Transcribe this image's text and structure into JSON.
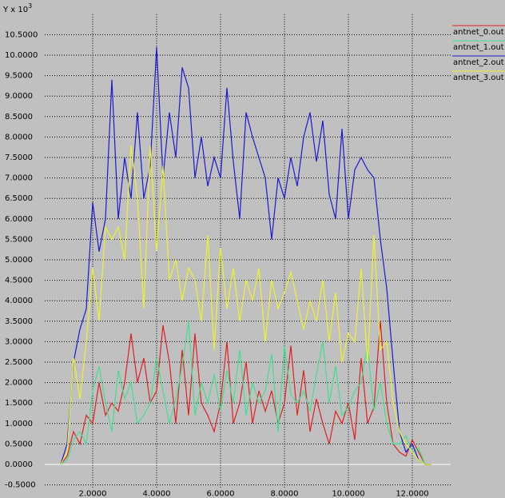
{
  "chart_data": {
    "type": "line",
    "y_label": {
      "base": "Y x 10",
      "exponent": "3"
    },
    "x": [
      1.0,
      1.2,
      1.4,
      1.6,
      1.8,
      2.0,
      2.2,
      2.4,
      2.6,
      2.8,
      3.0,
      3.2,
      3.4,
      3.6,
      3.8,
      4.0,
      4.2,
      4.4,
      4.6,
      4.8,
      5.0,
      5.2,
      5.4,
      5.6,
      5.8,
      6.0,
      6.2,
      6.4,
      6.6,
      6.8,
      7.0,
      7.2,
      7.4,
      7.6,
      7.8,
      8.0,
      8.2,
      8.4,
      8.6,
      8.8,
      9.0,
      9.2,
      9.4,
      9.6,
      9.8,
      10.0,
      10.2,
      10.4,
      10.6,
      10.8,
      11.0,
      11.2,
      11.4,
      11.6,
      11.8,
      12.0,
      12.2,
      12.4,
      12.6
    ],
    "series": [
      {
        "name": "antnet_0.out",
        "color": "#e02020",
        "values": [
          0,
          0.2,
          0.8,
          0.5,
          1.2,
          1.0,
          2.0,
          1.2,
          1.5,
          1.3,
          2.0,
          3.2,
          2.0,
          2.6,
          1.5,
          1.8,
          3.4,
          2.5,
          1.0,
          2.8,
          1.2,
          3.2,
          1.5,
          1.2,
          0.8,
          1.5,
          3.0,
          1.0,
          1.5,
          2.5,
          1.0,
          1.8,
          1.3,
          1.8,
          1.0,
          1.5,
          2.9,
          1.2,
          2.3,
          0.8,
          1.6,
          1.0,
          0.5,
          1.3,
          1.0,
          1.5,
          0.6,
          2.6,
          1.0,
          1.4,
          3.5,
          1.5,
          0.5,
          0.3,
          0.2,
          0.6,
          0.3,
          0,
          0
        ]
      },
      {
        "name": "antnet_1.out",
        "color": "#40e090",
        "values": [
          0,
          0.1,
          0.6,
          0.8,
          0.5,
          1.8,
          2.4,
          1.5,
          0.8,
          2.3,
          1.6,
          2.0,
          1.0,
          1.2,
          1.5,
          2.6,
          1.8,
          1.0,
          1.6,
          2.4,
          3.5,
          1.2,
          2.0,
          1.5,
          2.2,
          1.3,
          2.3,
          1.5,
          2.8,
          1.2,
          2.0,
          1.5,
          1.8,
          2.7,
          0.8,
          2.9,
          1.7,
          1.5,
          1.8,
          1.3,
          2.2,
          3.0,
          1.5,
          2.4,
          1.2,
          1.4,
          1.8,
          2.0,
          2.9,
          1.3,
          2.0,
          1.0,
          0.5,
          0.5,
          0.7,
          0.3,
          0.4,
          0,
          0
        ]
      },
      {
        "name": "antnet_2.out",
        "color": "#1a1ad0",
        "values": [
          0,
          0.5,
          2.5,
          3.3,
          3.8,
          6.4,
          5.2,
          6.0,
          9.4,
          6.0,
          7.5,
          6.5,
          8.6,
          6.5,
          7.3,
          10.2,
          7.0,
          8.6,
          7.5,
          9.7,
          9.2,
          7.0,
          8.0,
          6.8,
          7.5,
          7.0,
          9.2,
          7.4,
          6.0,
          8.6,
          8.0,
          7.5,
          7.0,
          5.5,
          7.0,
          6.5,
          7.5,
          6.8,
          8.0,
          8.6,
          7.4,
          8.4,
          6.6,
          6.0,
          8.2,
          6.0,
          7.2,
          7.5,
          7.2,
          7.0,
          5.5,
          4.3,
          2.5,
          0.8,
          0.3,
          0.5,
          0.1,
          0,
          0
        ]
      },
      {
        "name": "antnet_3.out",
        "color": "#f0f030",
        "values": [
          0,
          0.3,
          2.6,
          1.6,
          3.0,
          4.8,
          3.5,
          5.8,
          5.5,
          5.8,
          5.0,
          7.8,
          6.5,
          3.8,
          7.8,
          5.2,
          7.3,
          4.5,
          5.0,
          4.0,
          4.8,
          4.5,
          3.5,
          5.6,
          2.8,
          5.3,
          3.8,
          4.8,
          3.5,
          4.5,
          4.0,
          4.8,
          3.0,
          4.5,
          3.8,
          4.2,
          4.7,
          4.0,
          3.3,
          4.0,
          3.5,
          4.5,
          3.0,
          4.2,
          2.5,
          3.2,
          3.0,
          4.8,
          2.5,
          5.6,
          2.8,
          3.0,
          1.5,
          0.8,
          0.5,
          0.3,
          0.1,
          0,
          0
        ]
      }
    ],
    "xlim": [
      0.5,
      13.2
    ],
    "ylim": [
      -0.6,
      11.0
    ],
    "xticks": [
      {
        "value": 2,
        "label": "2.0000"
      },
      {
        "value": 4,
        "label": "4.0000"
      },
      {
        "value": 6,
        "label": "6.0000"
      },
      {
        "value": 8,
        "label": "8.0000"
      },
      {
        "value": 10,
        "label": "10.0000"
      },
      {
        "value": 12,
        "label": "12.0000"
      }
    ],
    "yticks": [
      {
        "value": -0.5,
        "label": "-0.5000"
      },
      {
        "value": 0,
        "label": "0.0000"
      },
      {
        "value": 0.5,
        "label": "0.5000"
      },
      {
        "value": 1,
        "label": "1.0000"
      },
      {
        "value": 1.5,
        "label": "1.5000"
      },
      {
        "value": 2,
        "label": "2.0000"
      },
      {
        "value": 2.5,
        "label": "2.5000"
      },
      {
        "value": 3,
        "label": "3.0000"
      },
      {
        "value": 3.5,
        "label": "3.5000"
      },
      {
        "value": 4,
        "label": "4.0000"
      },
      {
        "value": 4.5,
        "label": "4.5000"
      },
      {
        "value": 5,
        "label": "5.0000"
      },
      {
        "value": 5.5,
        "label": "5.5000"
      },
      {
        "value": 6,
        "label": "6.0000"
      },
      {
        "value": 6.5,
        "label": "6.5000"
      },
      {
        "value": 7,
        "label": "7.0000"
      },
      {
        "value": 7.5,
        "label": "7.5000"
      },
      {
        "value": 8,
        "label": "8.0000"
      },
      {
        "value": 8.5,
        "label": "8.5000"
      },
      {
        "value": 9,
        "label": "9.0000"
      },
      {
        "value": 9.5,
        "label": "9.5000"
      },
      {
        "value": 10,
        "label": "10.0000"
      },
      {
        "value": 10.5,
        "label": "10.5000"
      }
    ],
    "grid": true
  }
}
